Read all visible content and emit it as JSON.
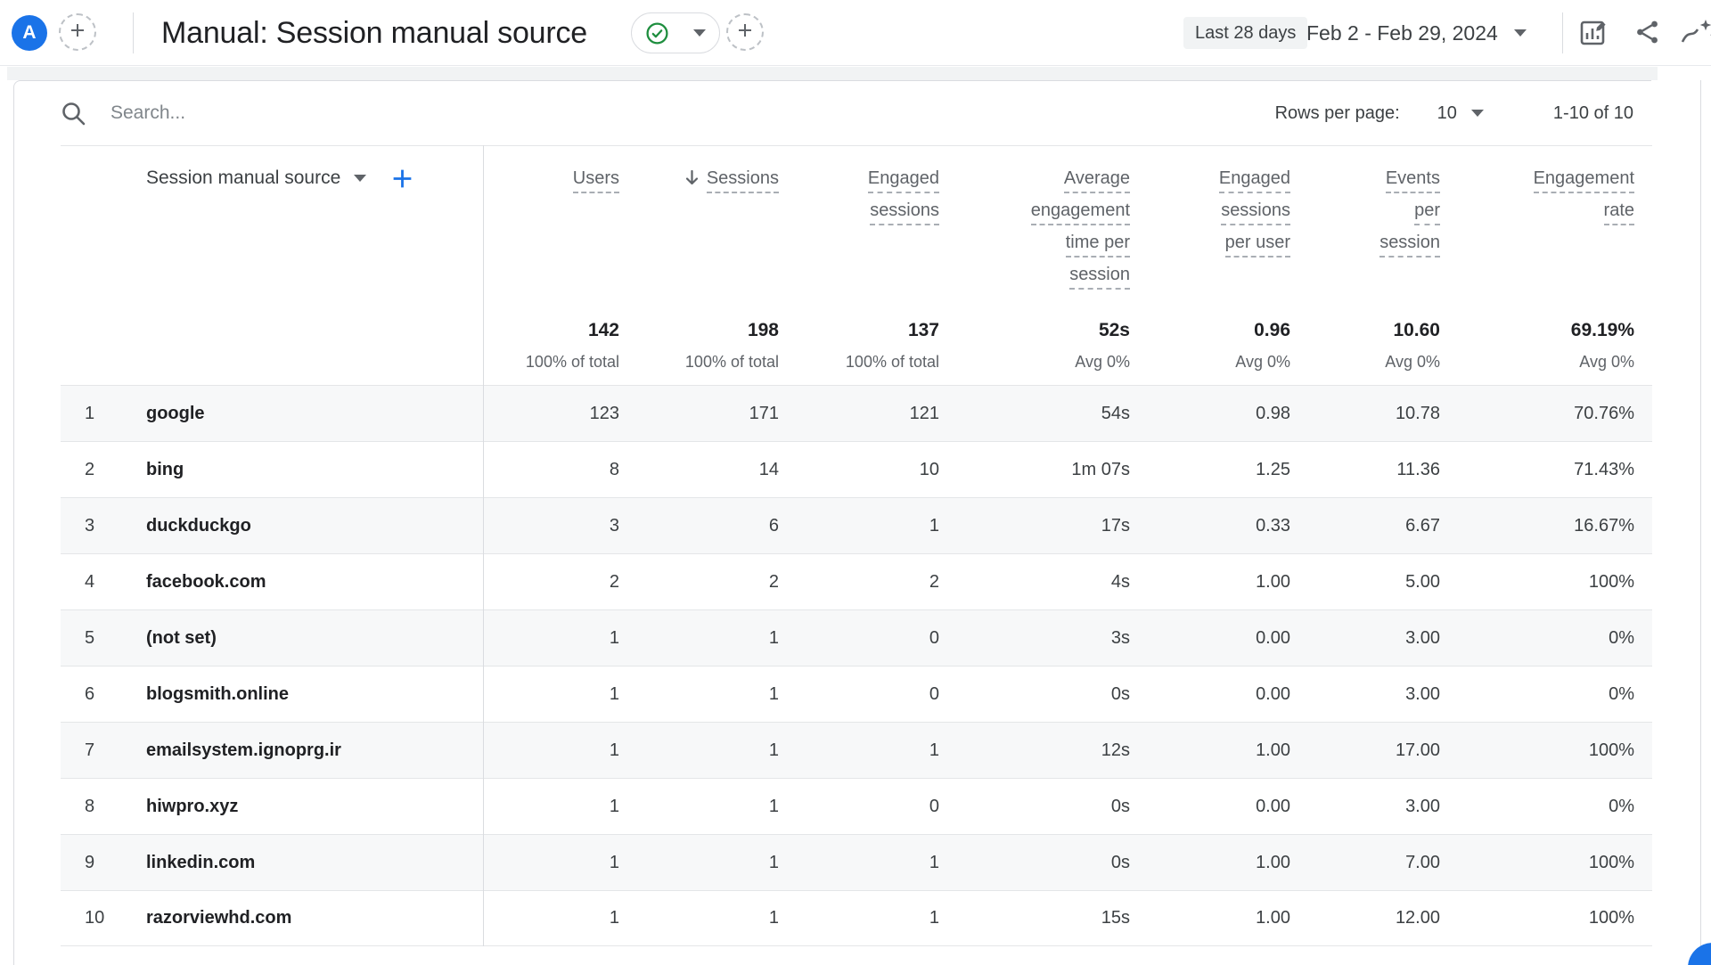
{
  "header": {
    "avatar_letter": "A",
    "title": "Manual: Session manual source",
    "date_range_label": "Last 28 days",
    "date_range_value": "Feb 2 - Feb 29, 2024"
  },
  "toolbar": {
    "search_placeholder": "Search...",
    "rows_per_page_label": "Rows per page:",
    "rows_per_page_value": "10",
    "pagination_status": "1-10 of 10"
  },
  "table": {
    "dimension_header": "Session manual source",
    "columns": [
      {
        "id": "users",
        "lines": [
          "Users"
        ],
        "sorted": false,
        "total": "142",
        "total_sub": "100% of total"
      },
      {
        "id": "sessions",
        "lines": [
          "Sessions"
        ],
        "sorted": true,
        "total": "198",
        "total_sub": "100% of total"
      },
      {
        "id": "engaged-sessions",
        "lines": [
          "Engaged",
          "sessions"
        ],
        "sorted": false,
        "total": "137",
        "total_sub": "100% of total"
      },
      {
        "id": "average-engagement-time-per-session",
        "lines": [
          "Average",
          "engagement",
          "time per",
          "session"
        ],
        "sorted": false,
        "total": "52s",
        "total_sub": "Avg 0%"
      },
      {
        "id": "engaged-sessions-per-user",
        "lines": [
          "Engaged",
          "sessions",
          "per user"
        ],
        "sorted": false,
        "total": "0.96",
        "total_sub": "Avg 0%"
      },
      {
        "id": "events-per-session",
        "lines": [
          "Events",
          "per",
          "session"
        ],
        "sorted": false,
        "total": "10.60",
        "total_sub": "Avg 0%"
      },
      {
        "id": "engagement-rate",
        "lines": [
          "Engagement",
          "rate"
        ],
        "sorted": false,
        "total": "69.19%",
        "total_sub": "Avg 0%"
      }
    ],
    "rows": [
      {
        "index": "1",
        "source": "google",
        "values": [
          "123",
          "171",
          "121",
          "54s",
          "0.98",
          "10.78",
          "70.76%"
        ]
      },
      {
        "index": "2",
        "source": "bing",
        "values": [
          "8",
          "14",
          "10",
          "1m 07s",
          "1.25",
          "11.36",
          "71.43%"
        ]
      },
      {
        "index": "3",
        "source": "duckduckgo",
        "values": [
          "3",
          "6",
          "1",
          "17s",
          "0.33",
          "6.67",
          "16.67%"
        ]
      },
      {
        "index": "4",
        "source": "facebook.com",
        "values": [
          "2",
          "2",
          "2",
          "4s",
          "1.00",
          "5.00",
          "100%"
        ]
      },
      {
        "index": "5",
        "source": "(not set)",
        "values": [
          "1",
          "1",
          "0",
          "3s",
          "0.00",
          "3.00",
          "0%"
        ]
      },
      {
        "index": "6",
        "source": "blogsmith.online",
        "values": [
          "1",
          "1",
          "0",
          "0s",
          "0.00",
          "3.00",
          "0%"
        ]
      },
      {
        "index": "7",
        "source": "emailsystem.ignoprg.ir",
        "values": [
          "1",
          "1",
          "1",
          "12s",
          "1.00",
          "17.00",
          "100%"
        ]
      },
      {
        "index": "8",
        "source": "hiwpro.xyz",
        "values": [
          "1",
          "1",
          "0",
          "0s",
          "0.00",
          "3.00",
          "0%"
        ]
      },
      {
        "index": "9",
        "source": "linkedin.com",
        "values": [
          "1",
          "1",
          "1",
          "0s",
          "1.00",
          "7.00",
          "100%"
        ]
      },
      {
        "index": "10",
        "source": "razorviewhd.com",
        "values": [
          "1",
          "1",
          "1",
          "15s",
          "1.00",
          "12.00",
          "100%"
        ]
      }
    ]
  },
  "colors": {
    "accent_blue": "#1a73e8",
    "check_green": "#1e8e3e",
    "row_stripe": "#f7f8f9",
    "border": "#dadce0",
    "text_primary": "#202124",
    "text_secondary": "#5f6368"
  }
}
